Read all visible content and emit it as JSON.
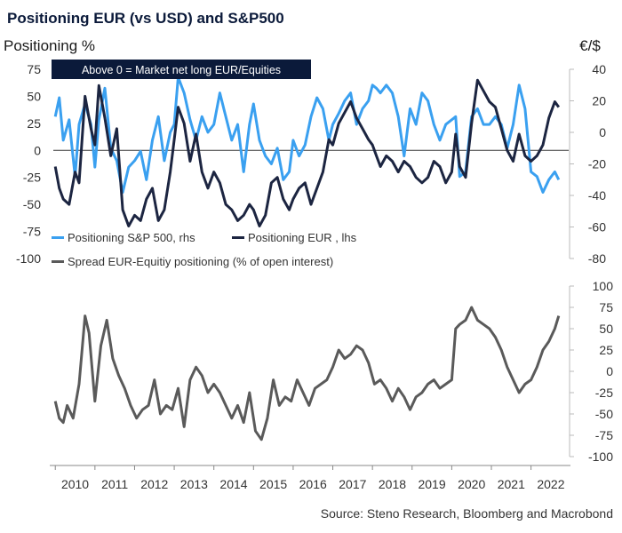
{
  "chart_data": [
    {
      "type": "line",
      "title": "Positioning EUR (vs USD) and S&P500",
      "left_axis_label": "Positioning %",
      "right_axis_label": "€/$",
      "annotation": "Above 0 = Market net long EUR/Equities",
      "left_ylim": [
        -100,
        75
      ],
      "left_ticks": [
        75,
        50,
        25,
        0,
        -25,
        -50,
        -75,
        -100
      ],
      "right_ylim": [
        -80,
        40
      ],
      "right_ticks": [
        40,
        20,
        0,
        -20,
        -40,
        -60,
        -80
      ],
      "zero_line": true,
      "legend_placement": "bottom-left",
      "series": [
        {
          "name": "Positioning S&P 500, rhs",
          "axis": "right",
          "color": "#3aa0f0",
          "x": [
            2010.0,
            2010.1,
            2010.2,
            2010.35,
            2010.5,
            2010.6,
            2010.75,
            2010.9,
            2011.0,
            2011.1,
            2011.25,
            2011.4,
            2011.55,
            2011.7,
            2011.85,
            2012.0,
            2012.15,
            2012.3,
            2012.45,
            2012.6,
            2012.75,
            2012.9,
            2013.0,
            2013.1,
            2013.25,
            2013.4,
            2013.55,
            2013.7,
            2013.85,
            2014.0,
            2014.15,
            2014.3,
            2014.45,
            2014.6,
            2014.75,
            2014.9,
            2015.0,
            2015.15,
            2015.3,
            2015.45,
            2015.6,
            2015.75,
            2015.9,
            2016.0,
            2016.15,
            2016.3,
            2016.45,
            2016.6,
            2016.75,
            2016.9,
            2017.0,
            2017.15,
            2017.3,
            2017.45,
            2017.6,
            2017.75,
            2017.9,
            2018.0,
            2018.1,
            2018.2,
            2018.35,
            2018.5,
            2018.65,
            2018.8,
            2018.95,
            2019.1,
            2019.25,
            2019.4,
            2019.55,
            2019.7,
            2019.85,
            2020.0,
            2020.1,
            2020.2,
            2020.35,
            2020.5,
            2020.65,
            2020.8,
            2020.95,
            2021.1,
            2021.25,
            2021.4,
            2021.55,
            2021.7,
            2021.85,
            2022.0,
            2022.15,
            2022.3,
            2022.45,
            2022.6,
            2022.7
          ],
          "values": [
            10,
            22,
            -5,
            8,
            -28,
            5,
            18,
            5,
            -22,
            8,
            28,
            -10,
            -18,
            -38,
            -22,
            -18,
            -12,
            -30,
            -5,
            10,
            -18,
            0,
            5,
            35,
            25,
            8,
            -5,
            10,
            0,
            5,
            25,
            10,
            -5,
            5,
            -25,
            5,
            18,
            -5,
            -15,
            -20,
            -10,
            -30,
            -25,
            -5,
            -15,
            -8,
            10,
            22,
            15,
            -5,
            5,
            12,
            20,
            25,
            5,
            15,
            20,
            30,
            28,
            25,
            30,
            25,
            10,
            -15,
            15,
            5,
            25,
            20,
            5,
            -5,
            5,
            8,
            10,
            -28,
            -25,
            10,
            15,
            5,
            5,
            10,
            5,
            -10,
            5,
            30,
            15,
            -25,
            -28,
            -38,
            -30,
            -25,
            -30
          ]
        },
        {
          "name": "Positioning EUR , lhs",
          "axis": "left",
          "color": "#1c2541",
          "x": [
            2010.0,
            2010.1,
            2010.2,
            2010.35,
            2010.5,
            2010.6,
            2010.75,
            2010.9,
            2011.0,
            2011.1,
            2011.25,
            2011.4,
            2011.55,
            2011.7,
            2011.85,
            2012.0,
            2012.15,
            2012.3,
            2012.45,
            2012.6,
            2012.75,
            2012.9,
            2013.0,
            2013.1,
            2013.25,
            2013.4,
            2013.55,
            2013.7,
            2013.85,
            2014.0,
            2014.15,
            2014.3,
            2014.45,
            2014.6,
            2014.75,
            2014.9,
            2015.0,
            2015.15,
            2015.3,
            2015.45,
            2015.6,
            2015.75,
            2015.9,
            2016.0,
            2016.15,
            2016.3,
            2016.45,
            2016.6,
            2016.75,
            2016.9,
            2017.0,
            2017.15,
            2017.3,
            2017.45,
            2017.6,
            2017.75,
            2017.9,
            2018.0,
            2018.1,
            2018.2,
            2018.35,
            2018.5,
            2018.65,
            2018.8,
            2018.95,
            2019.1,
            2019.25,
            2019.4,
            2019.55,
            2019.7,
            2019.85,
            2020.0,
            2020.1,
            2020.2,
            2020.35,
            2020.5,
            2020.65,
            2020.8,
            2020.95,
            2021.1,
            2021.25,
            2021.4,
            2021.55,
            2021.7,
            2021.85,
            2022.0,
            2022.15,
            2022.3,
            2022.45,
            2022.6,
            2022.7
          ],
          "values": [
            -15,
            -35,
            -45,
            -50,
            -20,
            -30,
            50,
            20,
            5,
            60,
            30,
            -5,
            20,
            -55,
            -70,
            -60,
            -65,
            -45,
            -35,
            -65,
            -55,
            -20,
            10,
            40,
            25,
            -10,
            15,
            -20,
            -35,
            -20,
            -30,
            -50,
            -55,
            -65,
            -60,
            -50,
            -55,
            -70,
            -60,
            -30,
            -25,
            -45,
            -55,
            -45,
            -35,
            -30,
            -50,
            -35,
            -20,
            10,
            5,
            25,
            35,
            45,
            30,
            20,
            10,
            5,
            -5,
            -15,
            -5,
            -10,
            -20,
            -10,
            -15,
            -25,
            -30,
            -25,
            -10,
            -15,
            -30,
            -20,
            15,
            -15,
            -25,
            25,
            65,
            55,
            45,
            40,
            20,
            0,
            -10,
            15,
            -5,
            -10,
            -5,
            5,
            30,
            45,
            40
          ]
        }
      ]
    },
    {
      "type": "line",
      "ylim": [
        -100,
        100
      ],
      "ticks": [
        100,
        75,
        50,
        25,
        0,
        -25,
        -50,
        -75,
        -100
      ],
      "xlim": [
        2009.95,
        2022.95
      ],
      "x_tick_labels": [
        "2010",
        "2011",
        "2012",
        "2013",
        "2014",
        "2015",
        "2016",
        "2017",
        "2018",
        "2019",
        "2020",
        "2021",
        "2022"
      ],
      "series": [
        {
          "name": "Spread EUR-Equitiy positioning (% of open interest)",
          "color": "#5a5a5a",
          "x": [
            2010.0,
            2010.1,
            2010.2,
            2010.3,
            2010.45,
            2010.6,
            2010.75,
            2010.85,
            2011.0,
            2011.15,
            2011.3,
            2011.45,
            2011.6,
            2011.75,
            2011.9,
            2012.05,
            2012.2,
            2012.35,
            2012.5,
            2012.65,
            2012.8,
            2012.95,
            2013.1,
            2013.25,
            2013.4,
            2013.55,
            2013.7,
            2013.85,
            2014.0,
            2014.15,
            2014.3,
            2014.45,
            2014.6,
            2014.75,
            2014.9,
            2015.05,
            2015.2,
            2015.35,
            2015.5,
            2015.65,
            2015.8,
            2015.95,
            2016.1,
            2016.25,
            2016.4,
            2016.55,
            2016.7,
            2016.85,
            2017.0,
            2017.15,
            2017.3,
            2017.45,
            2017.6,
            2017.75,
            2017.9,
            2018.05,
            2018.2,
            2018.35,
            2018.5,
            2018.65,
            2018.8,
            2018.95,
            2019.1,
            2019.25,
            2019.4,
            2019.55,
            2019.7,
            2019.85,
            2020.0,
            2020.1,
            2020.2,
            2020.35,
            2020.5,
            2020.65,
            2020.8,
            2020.95,
            2021.1,
            2021.25,
            2021.4,
            2021.55,
            2021.7,
            2021.85,
            2022.0,
            2022.15,
            2022.3,
            2022.45,
            2022.6,
            2022.7
          ],
          "values": [
            -35,
            -55,
            -60,
            -40,
            -55,
            -15,
            65,
            45,
            -35,
            30,
            60,
            15,
            -5,
            -20,
            -40,
            -55,
            -45,
            -40,
            -10,
            -50,
            -40,
            -45,
            -20,
            -65,
            -10,
            5,
            -5,
            -25,
            -15,
            -25,
            -40,
            -55,
            -40,
            -60,
            -25,
            -70,
            -80,
            -55,
            -10,
            -40,
            -30,
            -35,
            -10,
            -25,
            -40,
            -20,
            -15,
            -10,
            5,
            25,
            15,
            20,
            30,
            25,
            10,
            -15,
            -10,
            -20,
            -35,
            -20,
            -30,
            -45,
            -30,
            -25,
            -15,
            -10,
            -20,
            -15,
            -10,
            50,
            55,
            60,
            75,
            60,
            55,
            50,
            40,
            25,
            5,
            -10,
            -25,
            -15,
            -10,
            5,
            25,
            35,
            50,
            65
          ]
        }
      ]
    }
  ],
  "source": "Source: Steno Research, Bloomberg and Macrobond"
}
